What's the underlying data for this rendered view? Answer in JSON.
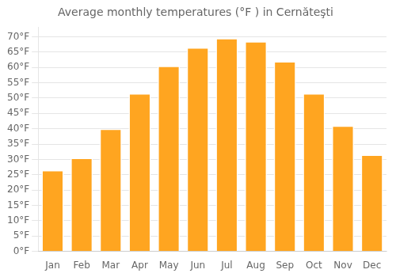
{
  "chart_data": {
    "type": "bar",
    "title": "Average monthly temperatures (°F ) in Cernăteşti",
    "categories": [
      "Jan",
      "Feb",
      "Mar",
      "Apr",
      "May",
      "Jun",
      "Jul",
      "Aug",
      "Sep",
      "Oct",
      "Nov",
      "Dec"
    ],
    "values": [
      26.5,
      30.5,
      40.0,
      51.5,
      60.5,
      66.5,
      69.5,
      68.5,
      62.0,
      51.5,
      41.0,
      31.5
    ],
    "color": "#FFA520",
    "ylim": [
      0,
      73
    ],
    "yticks": [
      {
        "value": 0,
        "label": "0°F"
      },
      {
        "value": 5,
        "label": "5°F"
      },
      {
        "value": 10,
        "label": "10°F"
      },
      {
        "value": 15,
        "label": "15°F"
      },
      {
        "value": 20,
        "label": "20°F"
      },
      {
        "value": 25,
        "label": "25°F"
      },
      {
        "value": 30,
        "label": "30°F"
      },
      {
        "value": 35,
        "label": "35°F"
      },
      {
        "value": 40,
        "label": "40°F"
      },
      {
        "value": 45,
        "label": "45°F"
      },
      {
        "value": 50,
        "label": "50°F"
      },
      {
        "value": 55,
        "label": "55°F"
      },
      {
        "value": 60,
        "label": "60°F"
      },
      {
        "value": 65,
        "label": "65°F"
      },
      {
        "value": 70,
        "label": "70°F"
      }
    ],
    "grid": true
  }
}
